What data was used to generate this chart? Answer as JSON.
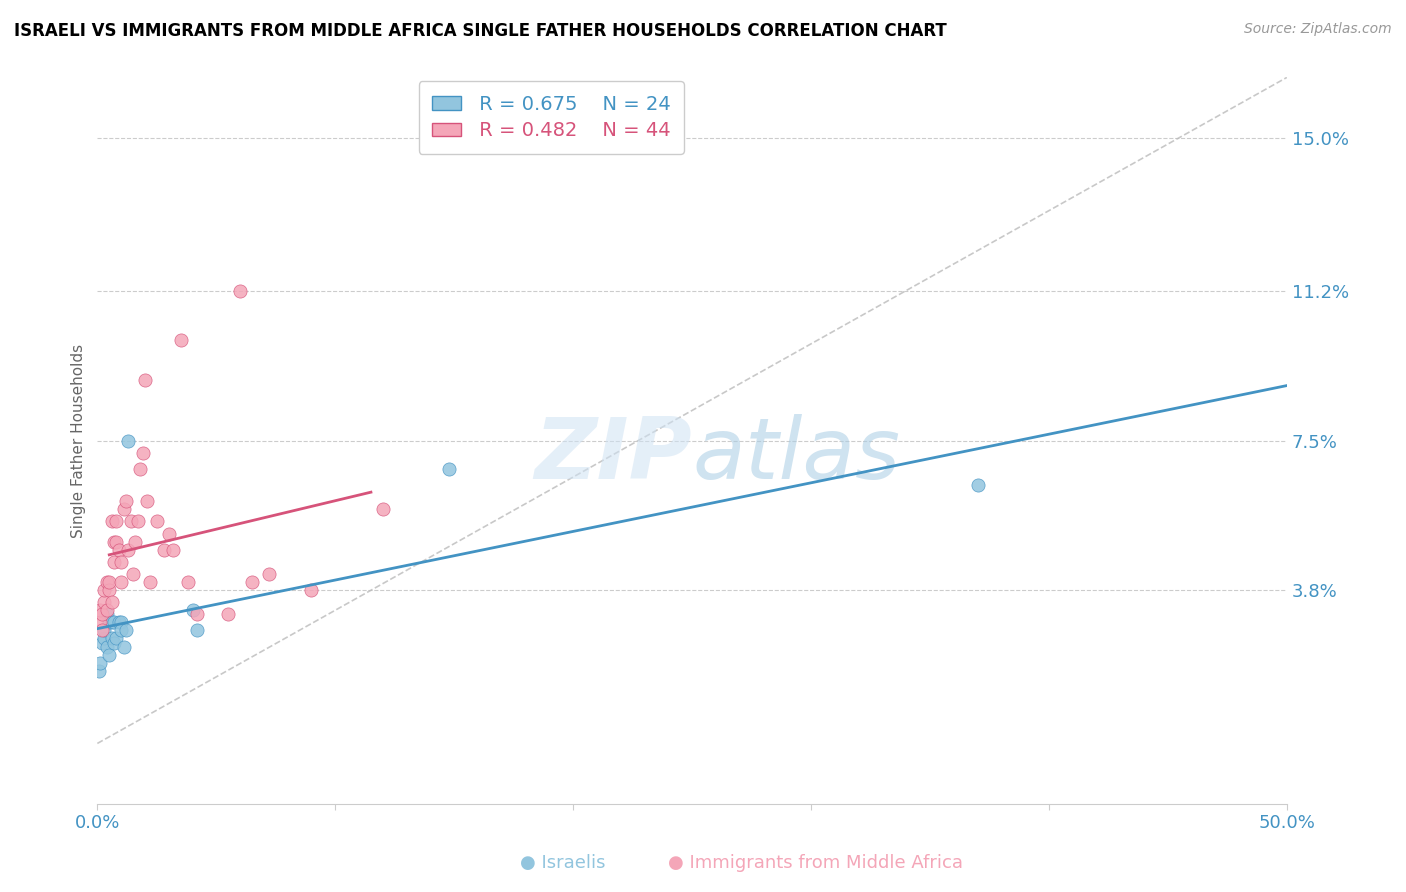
{
  "title": "ISRAELI VS IMMIGRANTS FROM MIDDLE AFRICA SINGLE FATHER HOUSEHOLDS CORRELATION CHART",
  "source": "Source: ZipAtlas.com",
  "ylabel": "Single Father Households",
  "ytick_labels": [
    "15.0%",
    "11.2%",
    "7.5%",
    "3.8%"
  ],
  "ytick_values": [
    0.15,
    0.112,
    0.075,
    0.038
  ],
  "xlim": [
    0.0,
    0.5
  ],
  "ylim": [
    -0.015,
    0.165
  ],
  "legend_blue_r": "R = 0.675",
  "legend_blue_n": "N = 24",
  "legend_pink_r": "R = 0.482",
  "legend_pink_n": "N = 44",
  "blue_scatter_color": "#92c5de",
  "pink_scatter_color": "#f4a6b8",
  "line_blue": "#4393c3",
  "line_pink": "#d6537a",
  "dashed_color": "#bbbbbb",
  "title_fontsize": 12,
  "israelis_x": [
    0.0005,
    0.001,
    0.002,
    0.003,
    0.003,
    0.004,
    0.004,
    0.005,
    0.005,
    0.006,
    0.006,
    0.007,
    0.007,
    0.008,
    0.009,
    0.01,
    0.01,
    0.011,
    0.012,
    0.013,
    0.04,
    0.042,
    0.148,
    0.37
  ],
  "israelis_y": [
    0.018,
    0.02,
    0.025,
    0.026,
    0.028,
    0.024,
    0.032,
    0.022,
    0.03,
    0.026,
    0.03,
    0.025,
    0.03,
    0.026,
    0.03,
    0.03,
    0.028,
    0.024,
    0.028,
    0.075,
    0.033,
    0.028,
    0.068,
    0.064
  ],
  "immigrants_x": [
    0.001,
    0.001,
    0.002,
    0.002,
    0.003,
    0.003,
    0.004,
    0.004,
    0.005,
    0.005,
    0.006,
    0.006,
    0.007,
    0.007,
    0.008,
    0.008,
    0.009,
    0.01,
    0.01,
    0.011,
    0.012,
    0.013,
    0.014,
    0.015,
    0.016,
    0.017,
    0.018,
    0.019,
    0.02,
    0.021,
    0.022,
    0.025,
    0.028,
    0.03,
    0.032,
    0.035,
    0.038,
    0.042,
    0.055,
    0.06,
    0.065,
    0.072,
    0.09,
    0.12
  ],
  "immigrants_y": [
    0.03,
    0.033,
    0.028,
    0.032,
    0.035,
    0.038,
    0.033,
    0.04,
    0.038,
    0.04,
    0.035,
    0.055,
    0.05,
    0.045,
    0.05,
    0.055,
    0.048,
    0.045,
    0.04,
    0.058,
    0.06,
    0.048,
    0.055,
    0.042,
    0.05,
    0.055,
    0.068,
    0.072,
    0.09,
    0.06,
    0.04,
    0.055,
    0.048,
    0.052,
    0.048,
    0.1,
    0.04,
    0.032,
    0.032,
    0.112,
    0.04,
    0.042,
    0.038,
    0.058
  ],
  "blue_line_x_start": 0.0,
  "blue_line_x_end": 0.5,
  "pink_line_x_start": 0.005,
  "pink_line_x_end": 0.115
}
